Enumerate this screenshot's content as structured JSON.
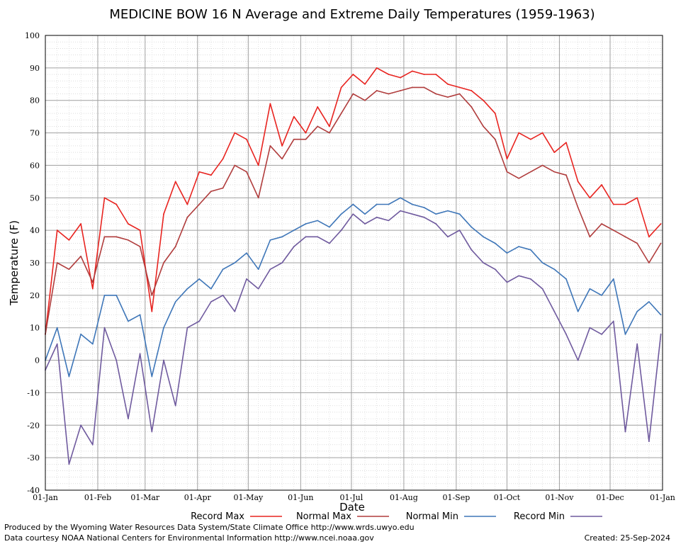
{
  "chart_data": {
    "type": "line",
    "title": "MEDICINE BOW 16 N Average and Extreme Daily Temperatures (1959-1963)",
    "xlabel": "Date",
    "ylabel": "Temperature (F)",
    "ylim": [
      -40,
      100
    ],
    "yticks": [
      "100",
      "90",
      "80",
      "70",
      "60",
      "50",
      "40",
      "30",
      "20",
      "10",
      "0",
      "-10",
      "-20",
      "-30",
      "-40"
    ],
    "xticks": [
      "01-Jan",
      "01-Feb",
      "01-Mar",
      "01-Apr",
      "01-May",
      "01-Jun",
      "01-Jul",
      "01-Aug",
      "01-Sep",
      "01-Oct",
      "01-Nov",
      "01-Dec",
      "01-Jan"
    ],
    "x_unit": "day of year (1 = 01-Jan)",
    "legend_position": "bottom",
    "grid": true,
    "series": [
      {
        "name": "Record Max",
        "color": "#e8231f",
        "x": [
          1,
          8,
          15,
          22,
          29,
          36,
          43,
          50,
          57,
          64,
          71,
          78,
          85,
          92,
          99,
          106,
          113,
          120,
          127,
          134,
          141,
          148,
          155,
          162,
          169,
          176,
          183,
          190,
          197,
          204,
          211,
          218,
          225,
          232,
          239,
          246,
          253,
          260,
          267,
          274,
          281,
          288,
          295,
          302,
          309,
          316,
          323,
          330,
          337,
          344,
          351,
          358,
          365
        ],
        "values": [
          8,
          40,
          37,
          42,
          22,
          50,
          48,
          42,
          40,
          15,
          45,
          55,
          48,
          58,
          57,
          62,
          70,
          68,
          60,
          79,
          66,
          75,
          70,
          78,
          72,
          84,
          88,
          85,
          90,
          88,
          87,
          89,
          88,
          88,
          85,
          84,
          83,
          80,
          76,
          62,
          70,
          68,
          70,
          64,
          67,
          55,
          50,
          54,
          48,
          48,
          50,
          38,
          42
        ]
      },
      {
        "name": "Normal Max",
        "color": "#b03c3c",
        "x": [
          1,
          8,
          15,
          22,
          29,
          36,
          43,
          50,
          57,
          64,
          71,
          78,
          85,
          92,
          99,
          106,
          113,
          120,
          127,
          134,
          141,
          148,
          155,
          162,
          169,
          176,
          183,
          190,
          197,
          204,
          211,
          218,
          225,
          232,
          239,
          246,
          253,
          260,
          267,
          274,
          281,
          288,
          295,
          302,
          309,
          316,
          323,
          330,
          337,
          344,
          351,
          358,
          365
        ],
        "values": [
          8,
          30,
          28,
          32,
          24,
          38,
          38,
          37,
          35,
          20,
          30,
          35,
          44,
          48,
          52,
          53,
          60,
          58,
          50,
          66,
          62,
          68,
          68,
          72,
          70,
          76,
          82,
          80,
          83,
          82,
          83,
          84,
          84,
          82,
          81,
          82,
          78,
          72,
          68,
          58,
          56,
          58,
          60,
          58,
          57,
          47,
          38,
          42,
          40,
          38,
          36,
          30,
          36
        ]
      },
      {
        "name": "Normal Min",
        "color": "#3e76b8",
        "x": [
          1,
          8,
          15,
          22,
          29,
          36,
          43,
          50,
          57,
          64,
          71,
          78,
          85,
          92,
          99,
          106,
          113,
          120,
          127,
          134,
          141,
          148,
          155,
          162,
          169,
          176,
          183,
          190,
          197,
          204,
          211,
          218,
          225,
          232,
          239,
          246,
          253,
          260,
          267,
          274,
          281,
          288,
          295,
          302,
          309,
          316,
          323,
          330,
          337,
          344,
          351,
          358,
          365
        ],
        "values": [
          0,
          10,
          -5,
          8,
          5,
          20,
          20,
          12,
          14,
          -5,
          10,
          18,
          22,
          25,
          22,
          28,
          30,
          33,
          28,
          37,
          38,
          40,
          42,
          43,
          41,
          45,
          48,
          45,
          48,
          48,
          50,
          48,
          47,
          45,
          46,
          45,
          41,
          38,
          36,
          33,
          35,
          34,
          30,
          28,
          25,
          15,
          22,
          20,
          25,
          8,
          15,
          18,
          14
        ]
      },
      {
        "name": "Record Min",
        "color": "#6f5a9e",
        "x": [
          1,
          8,
          15,
          22,
          29,
          36,
          43,
          50,
          57,
          64,
          71,
          78,
          85,
          92,
          99,
          106,
          113,
          120,
          127,
          134,
          141,
          148,
          155,
          162,
          169,
          176,
          183,
          190,
          197,
          204,
          211,
          218,
          225,
          232,
          239,
          246,
          253,
          260,
          267,
          274,
          281,
          288,
          295,
          302,
          309,
          316,
          323,
          330,
          337,
          344,
          351,
          358,
          365
        ],
        "values": [
          -3,
          5,
          -32,
          -20,
          -26,
          10,
          0,
          -18,
          2,
          -22,
          0,
          -14,
          10,
          12,
          18,
          20,
          15,
          25,
          22,
          28,
          30,
          35,
          38,
          38,
          36,
          40,
          45,
          42,
          44,
          43,
          46,
          45,
          44,
          42,
          38,
          40,
          34,
          30,
          28,
          24,
          26,
          25,
          22,
          15,
          8,
          0,
          10,
          8,
          12,
          -22,
          5,
          -25,
          8
        ]
      }
    ],
    "legend": [
      "Record Max",
      "Normal Max",
      "Normal Min",
      "Record Min"
    ]
  },
  "footer": {
    "producer": "Produced by the Wyoming Water Resources Data System/State Climate Office http://www.wrds.uwyo.edu",
    "courtesy": "Data courtesy NOAA National Centers for Environmental Information http://www.ncei.noaa.gov",
    "created": "Created:  25-Sep-2024"
  }
}
